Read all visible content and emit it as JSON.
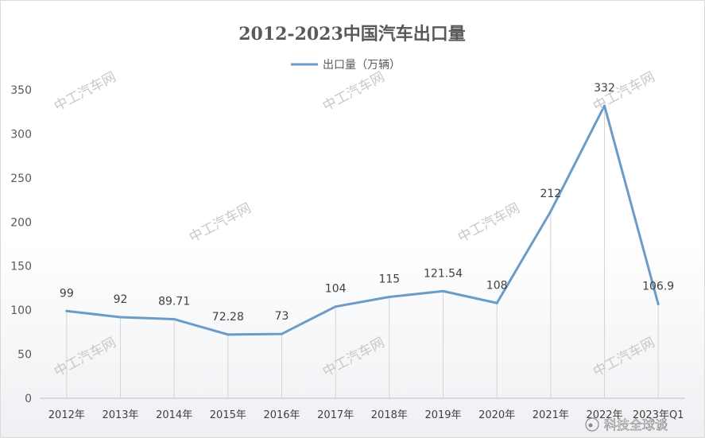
{
  "chart_data": {
    "type": "line",
    "title": "2012-2023中国汽车出口量",
    "categories": [
      "2012年",
      "2013年",
      "2014年",
      "2015年",
      "2016年",
      "2017年",
      "2018年",
      "2019年",
      "2020年",
      "2021年",
      "2022年",
      "2023年Q1"
    ],
    "series": [
      {
        "name": "出口量（万辆）",
        "values": [
          99,
          92,
          89.71,
          72.28,
          73,
          104,
          115,
          121.54,
          108,
          212,
          332,
          106.9
        ],
        "labels": [
          "99",
          "92",
          "89.71",
          "72.28",
          "73",
          "104",
          "115",
          "121.54",
          "108",
          "212",
          "332",
          "106.9"
        ],
        "color": "#6b9cc8"
      }
    ],
    "ylim": [
      0,
      350
    ],
    "yticks": [
      "0",
      "50",
      "100",
      "150",
      "200",
      "250",
      "300",
      "350"
    ],
    "grid": "vertical drop lines at each category",
    "legend_position": "top-center"
  },
  "watermark_text": "中工汽车网",
  "credit_text": "科技全球谈"
}
